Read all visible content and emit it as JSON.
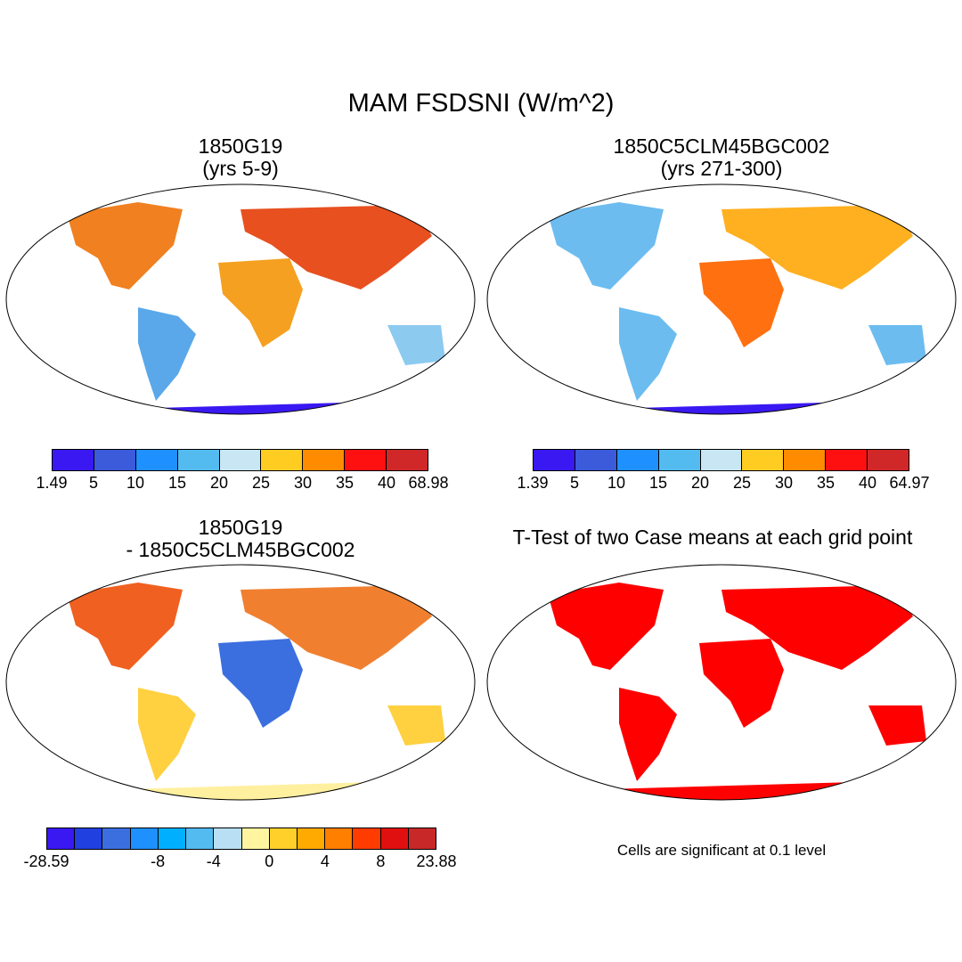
{
  "title": "MAM FSDSNI (W/m^2)",
  "panels": {
    "tl": {
      "line1": "1850G19",
      "line2": "(yrs 5-9)"
    },
    "tr": {
      "line1": "1850C5CLM45BGC002",
      "line2": "(yrs 271-300)"
    },
    "bl": {
      "line1": "1850G19",
      "line2": "- 1850C5CLM45BGC002"
    },
    "br": {
      "line1": "T-Test of two Case means at each grid point"
    }
  },
  "colorbars": {
    "tl": {
      "colors": [
        "#3a18f2",
        "#3b5bdb",
        "#1e90ff",
        "#53bbf0",
        "#c8e6f4",
        "#ffcc22",
        "#ff8c00",
        "#ff1010",
        "#d02828"
      ],
      "labels": [
        "1.49",
        "5",
        "10",
        "15",
        "20",
        "25",
        "30",
        "35",
        "40",
        "68.98"
      ]
    },
    "tr": {
      "colors": [
        "#3a18f2",
        "#3b5bdb",
        "#1e90ff",
        "#53bbf0",
        "#c8e6f4",
        "#ffcc22",
        "#ff8c00",
        "#ff1010",
        "#d02828"
      ],
      "labels": [
        "1.39",
        "5",
        "10",
        "15",
        "20",
        "25",
        "30",
        "35",
        "40",
        "64.97"
      ]
    },
    "bl": {
      "colors": [
        "#3a18f2",
        "#2040e0",
        "#3b6fe0",
        "#1e90ff",
        "#00b0ff",
        "#53bbf0",
        "#b8dff4",
        "#fff5a0",
        "#ffd02a",
        "#ffaa00",
        "#ff7f00",
        "#ff3c00",
        "#e01010",
        "#c82828"
      ],
      "labels": [
        "-28.59",
        "-8",
        "-4",
        "0",
        "4",
        "8",
        "23.88"
      ]
    }
  },
  "significance_note": "Cells are significant at 0.1 level"
}
